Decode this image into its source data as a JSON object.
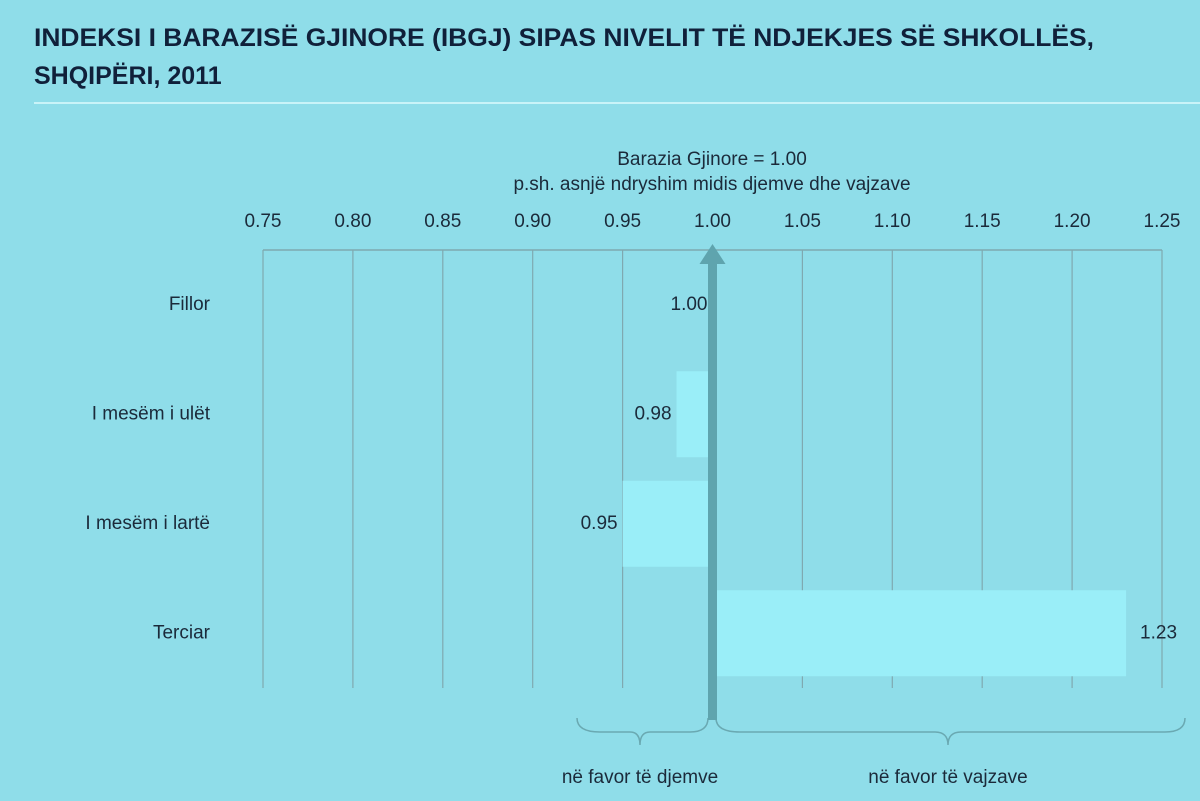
{
  "chart_data": {
    "type": "bar",
    "title": [
      "INDEKSI I BARAZISË GJINORE (IBGJ) SIPAS NIVELIT TË NDJEKJES SË SHKOLLËS,",
      "SHQIPËRI, 2011"
    ],
    "annotations": [
      "Barazia Gjinore = 1.00",
      "p.sh. asnjë ndryshim midis djemve dhe vajzave",
      "në favor të djemve",
      "në favor të vajzave"
    ],
    "categories": [
      "Fillor",
      "I mesëm i ulët",
      "I mesëm i lartë",
      "Terciar"
    ],
    "values": [
      1.0,
      0.98,
      0.95,
      1.23
    ],
    "value_labels": [
      "1.00",
      "0.98",
      "0.95",
      "1.23"
    ],
    "reference": 1,
    "color": "#9aeef8",
    "xlim": [
      0.75,
      1.25
    ],
    "xticks": [
      0.75,
      {
        "value": 0.8,
        "label": "0.80"
      },
      0.85,
      {
        "value": 0.9,
        "label": "0.90"
      },
      0.95,
      {
        "value": 1,
        "label": "1.00"
      },
      1.05,
      {
        "value": 1.1,
        "label": "1.10"
      },
      1.15,
      {
        "value": 1.2,
        "label": "1.20"
      },
      1.25
    ],
    "grid": true
  }
}
